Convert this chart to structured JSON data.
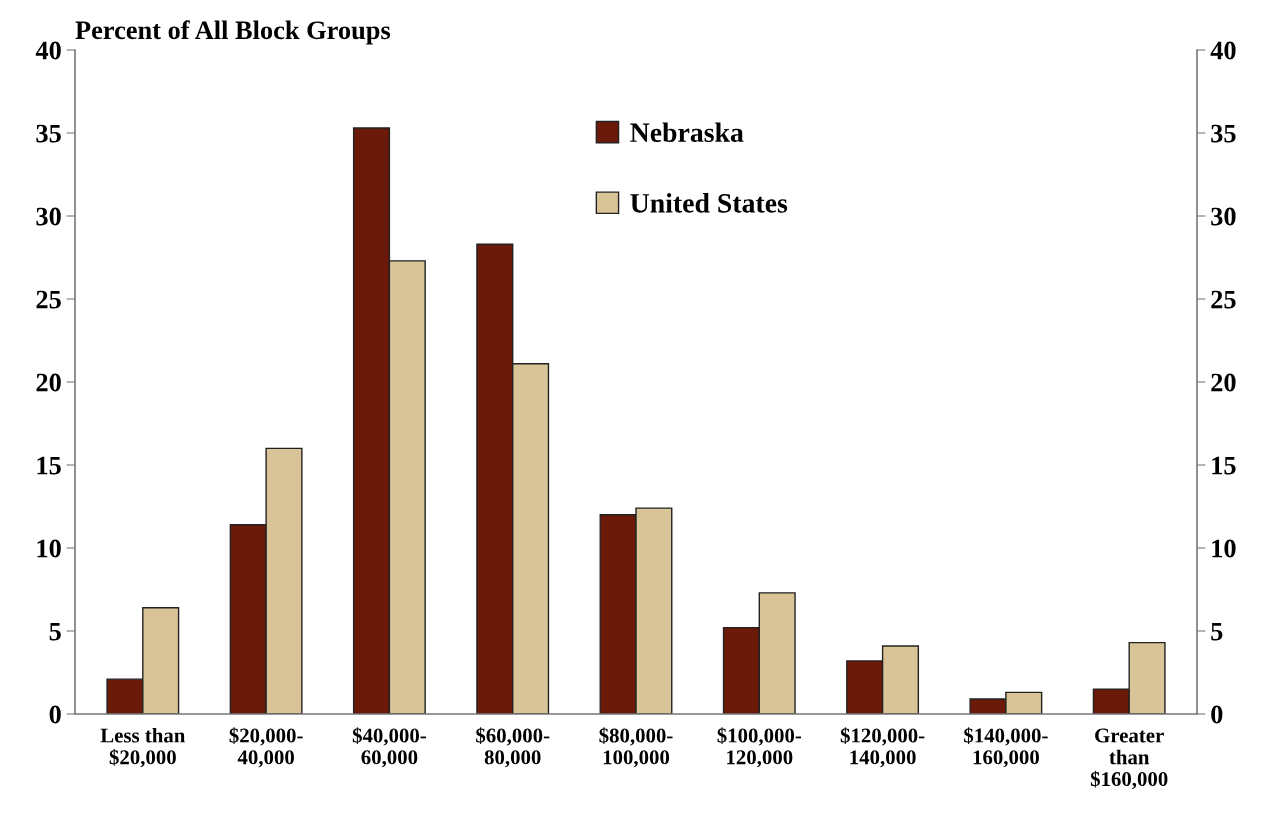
{
  "chart_data": {
    "type": "bar",
    "ylabel": "Percent of All Block Groups",
    "categories": [
      "Less than\n$20,000",
      "$20,000-\n40,000",
      "$40,000-\n60,000",
      "$60,000-\n80,000",
      "$80,000-\n100,000",
      "$100,000-\n120,000",
      "$120,000-\n140,000",
      "$140,000-\n160,000",
      "Greater\nthan\n$160,000"
    ],
    "series": [
      {
        "name": "Nebraska",
        "color": "#6b1a0a",
        "values": [
          2.1,
          11.4,
          35.3,
          28.3,
          12.0,
          5.2,
          3.2,
          0.9,
          1.5
        ]
      },
      {
        "name": "United States",
        "color": "#d9c497",
        "values": [
          6.4,
          16.0,
          27.3,
          21.1,
          12.4,
          7.3,
          4.1,
          1.3,
          4.3
        ]
      }
    ],
    "ylim": [
      0,
      40
    ],
    "yticks": [
      0,
      5,
      10,
      15,
      20,
      25,
      30,
      35,
      40
    ],
    "y2lim": [
      0,
      40
    ],
    "y2ticks": [
      0,
      5,
      10,
      15,
      20,
      25,
      30,
      35,
      40
    ],
    "grid": false,
    "legend": "top"
  }
}
